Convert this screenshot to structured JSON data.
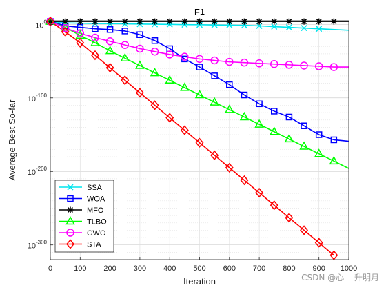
{
  "chart_data": {
    "type": "line",
    "title": "F1",
    "xlabel": "Iteration",
    "ylabel": "Average Best So-far",
    "xlim": [
      0,
      1000
    ],
    "ylim_exp": [
      -320,
      5
    ],
    "yscale": "log",
    "grid": true,
    "legend_position": "bottom-left",
    "x_ticks": [
      "0",
      "100",
      "200",
      "300",
      "400",
      "500",
      "600",
      "700",
      "800",
      "900",
      "1000"
    ],
    "y_ticks": [
      {
        "exp": 0,
        "base": "10",
        "sup": "0"
      },
      {
        "exp": -100,
        "base": "10",
        "sup": "-100"
      },
      {
        "exp": -200,
        "base": "10",
        "sup": "-200"
      },
      {
        "exp": -300,
        "base": "10",
        "sup": "-300"
      }
    ],
    "series": [
      {
        "name": "SSA",
        "color": "#00e5ee",
        "marker": "x",
        "x": [
          0,
          50,
          100,
          150,
          200,
          250,
          300,
          350,
          400,
          450,
          500,
          550,
          600,
          650,
          700,
          750,
          800,
          850,
          900,
          1000
        ],
        "y_exp": [
          4,
          2,
          1.5,
          1.2,
          1,
          0.8,
          0.5,
          0.2,
          0,
          -0.3,
          -0.5,
          -0.8,
          -1,
          -1.3,
          -2,
          -3,
          -4,
          -5,
          -6,
          -8
        ]
      },
      {
        "name": "WOA",
        "color": "#0000ff",
        "marker": "square",
        "x": [
          0,
          50,
          100,
          150,
          200,
          250,
          300,
          350,
          400,
          450,
          500,
          550,
          600,
          650,
          700,
          750,
          800,
          850,
          900,
          950,
          1000
        ],
        "y_exp": [
          4,
          -2,
          -4,
          -6,
          -7,
          -9,
          -14,
          -22,
          -33,
          -47,
          -58,
          -70,
          -82,
          -96,
          -108,
          -118,
          -126,
          -138,
          -150,
          -157,
          -159
        ]
      },
      {
        "name": "MFO",
        "color": "#000000",
        "marker": "star",
        "x": [
          0,
          50,
          100,
          150,
          200,
          250,
          300,
          350,
          400,
          450,
          500,
          550,
          600,
          650,
          700,
          750,
          800,
          850,
          900,
          950,
          1000
        ],
        "y_exp": [
          4,
          4,
          4,
          4,
          4,
          4,
          4,
          4,
          4,
          4,
          4,
          4,
          4,
          4,
          4,
          4,
          4,
          4,
          4,
          4,
          4
        ]
      },
      {
        "name": "TLBO",
        "color": "#00ff00",
        "marker": "triangle",
        "x": [
          0,
          50,
          100,
          150,
          200,
          250,
          300,
          350,
          400,
          450,
          500,
          550,
          600,
          650,
          700,
          750,
          800,
          850,
          900,
          950,
          1000
        ],
        "y_exp": [
          4,
          -4,
          -15,
          -25,
          -36,
          -46,
          -56,
          -66,
          -76,
          -86,
          -96,
          -106,
          -116,
          -126,
          -136,
          -146,
          -156,
          -166,
          -176,
          -186,
          -196
        ]
      },
      {
        "name": "GWO",
        "color": "#ff00ff",
        "marker": "circle",
        "x": [
          0,
          50,
          100,
          150,
          200,
          250,
          300,
          350,
          400,
          450,
          500,
          550,
          600,
          650,
          700,
          750,
          800,
          850,
          900,
          950,
          1000
        ],
        "y_exp": [
          4,
          -5,
          -12,
          -18,
          -23,
          -28,
          -33,
          -37,
          -41,
          -44,
          -47,
          -49,
          -51,
          -52,
          -53,
          -54,
          -55,
          -56,
          -57,
          -58,
          -58
        ]
      },
      {
        "name": "STA",
        "color": "#ff0000",
        "marker": "diamond",
        "x": [
          0,
          50,
          100,
          150,
          200,
          250,
          300,
          350,
          400,
          450,
          500,
          550,
          600,
          650,
          700,
          750,
          800,
          850,
          900,
          950
        ],
        "y_exp": [
          4,
          -10,
          -25,
          -42,
          -59,
          -76,
          -93,
          -110,
          -127,
          -144,
          -161,
          -178,
          -195,
          -212,
          -229,
          -246,
          -263,
          -280,
          -297,
          -314
        ]
      }
    ]
  },
  "watermark": "CSDN @心 ᅟ升明月"
}
